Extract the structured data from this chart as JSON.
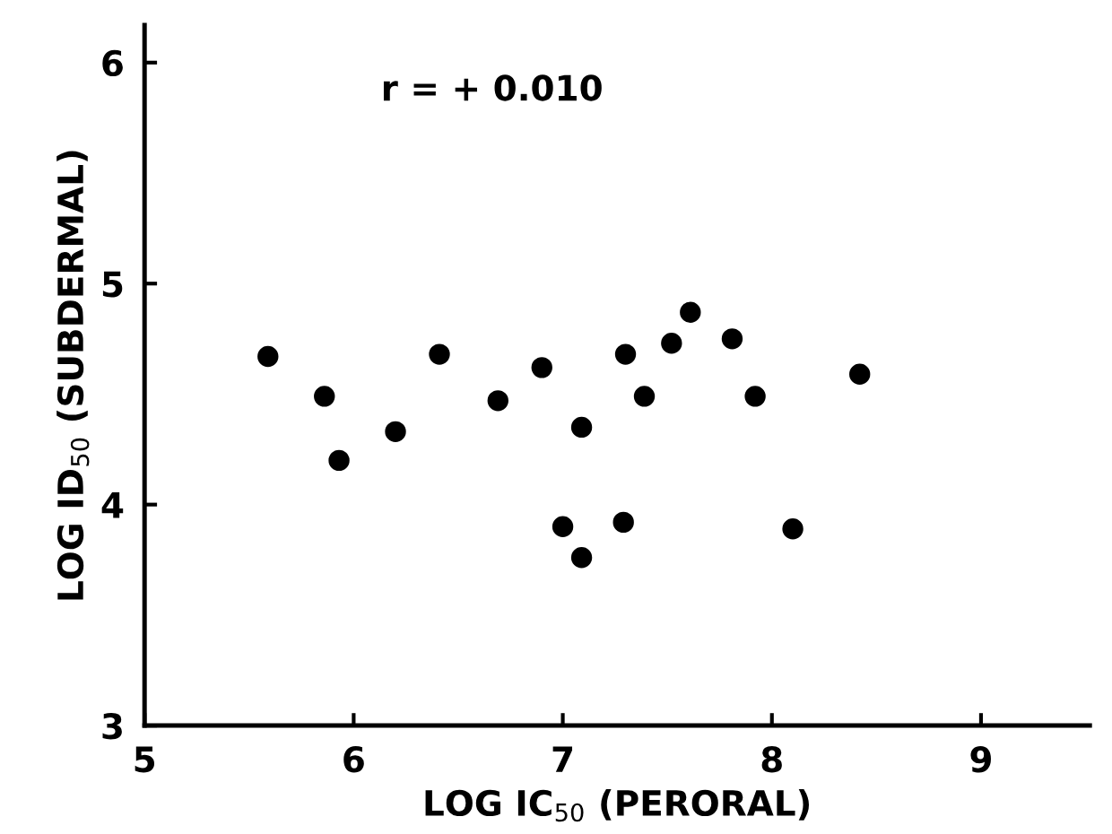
{
  "chart_data": {
    "type": "scatter",
    "xlabel": "LOG IC$_{50}$ (PERORAL)",
    "ylabel": "LOG ID$_{50}$ (SUBDERMAL)",
    "annotations": [
      "r = + 0.010"
    ],
    "x": [
      5.59,
      5.86,
      5.93,
      6.2,
      6.41,
      6.69,
      6.9,
      7.0,
      7.09,
      7.09,
      7.29,
      7.3,
      7.39,
      7.52,
      7.61,
      7.81,
      7.92,
      8.1,
      8.42
    ],
    "series": [
      {
        "color": "#000000",
        "values": [
          4.67,
          4.49,
          4.2,
          4.33,
          4.68,
          4.47,
          4.62,
          3.9,
          4.35,
          3.76,
          3.92,
          4.68,
          4.49,
          4.73,
          4.87,
          4.75,
          4.49,
          3.89,
          4.59
        ]
      }
    ],
    "xlim": [
      5,
      9.52
    ],
    "ylim": [
      3,
      6.17
    ],
    "xticks": [
      5,
      6,
      7,
      8,
      9
    ],
    "yticks": [
      3,
      4,
      5,
      6
    ],
    "marker": "circle",
    "grid": false
  }
}
